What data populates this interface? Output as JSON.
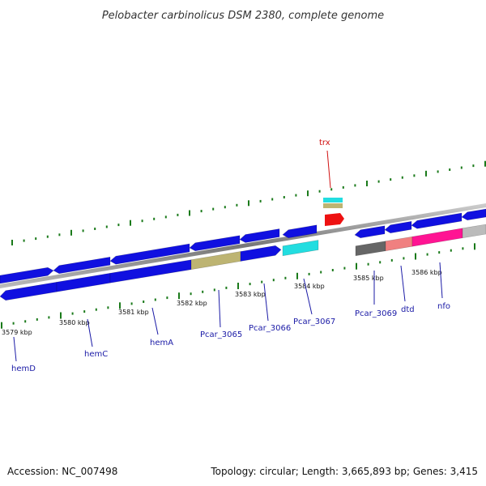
{
  "title": "Pelobacter carbinolicus DSM 2380, complete genome",
  "footer": {
    "accession": "Accession: NC_007498",
    "summary": "Topology: circular; Length: 3,665,893 bp; Genes: 3,415"
  },
  "colors": {
    "gene_blue": "#1010e0",
    "khaki": "#bdb472",
    "cyan": "#22dde0",
    "red": "#ee1111",
    "dark_gray": "#666666",
    "salmon": "#f08080",
    "magenta": "#ff1493",
    "light_gray": "#bbbbbb",
    "tick_green": "#1a7a1a",
    "label_blue": "#1a1aa6",
    "label_red": "#d01010"
  },
  "kbp_labels": [
    "3579 kbp",
    "3580 kbp",
    "3581 kbp",
    "3582 kbp",
    "3583 kbp",
    "3584 kbp",
    "3585 kbp",
    "3586 kbp"
  ],
  "gene_labels": [
    {
      "name": "hemD",
      "color": "label_blue"
    },
    {
      "name": "hemC",
      "color": "label_blue"
    },
    {
      "name": "hemA",
      "color": "label_blue"
    },
    {
      "name": "Pcar_3065",
      "color": "label_blue"
    },
    {
      "name": "Pcar_3066",
      "color": "label_blue"
    },
    {
      "name": "Pcar_3067",
      "color": "label_blue"
    },
    {
      "name": "Pcar_3069",
      "color": "label_blue"
    },
    {
      "name": "dtd",
      "color": "label_blue"
    },
    {
      "name": "nfo",
      "color": "label_blue"
    },
    {
      "name": "trx",
      "color": "label_red"
    }
  ]
}
